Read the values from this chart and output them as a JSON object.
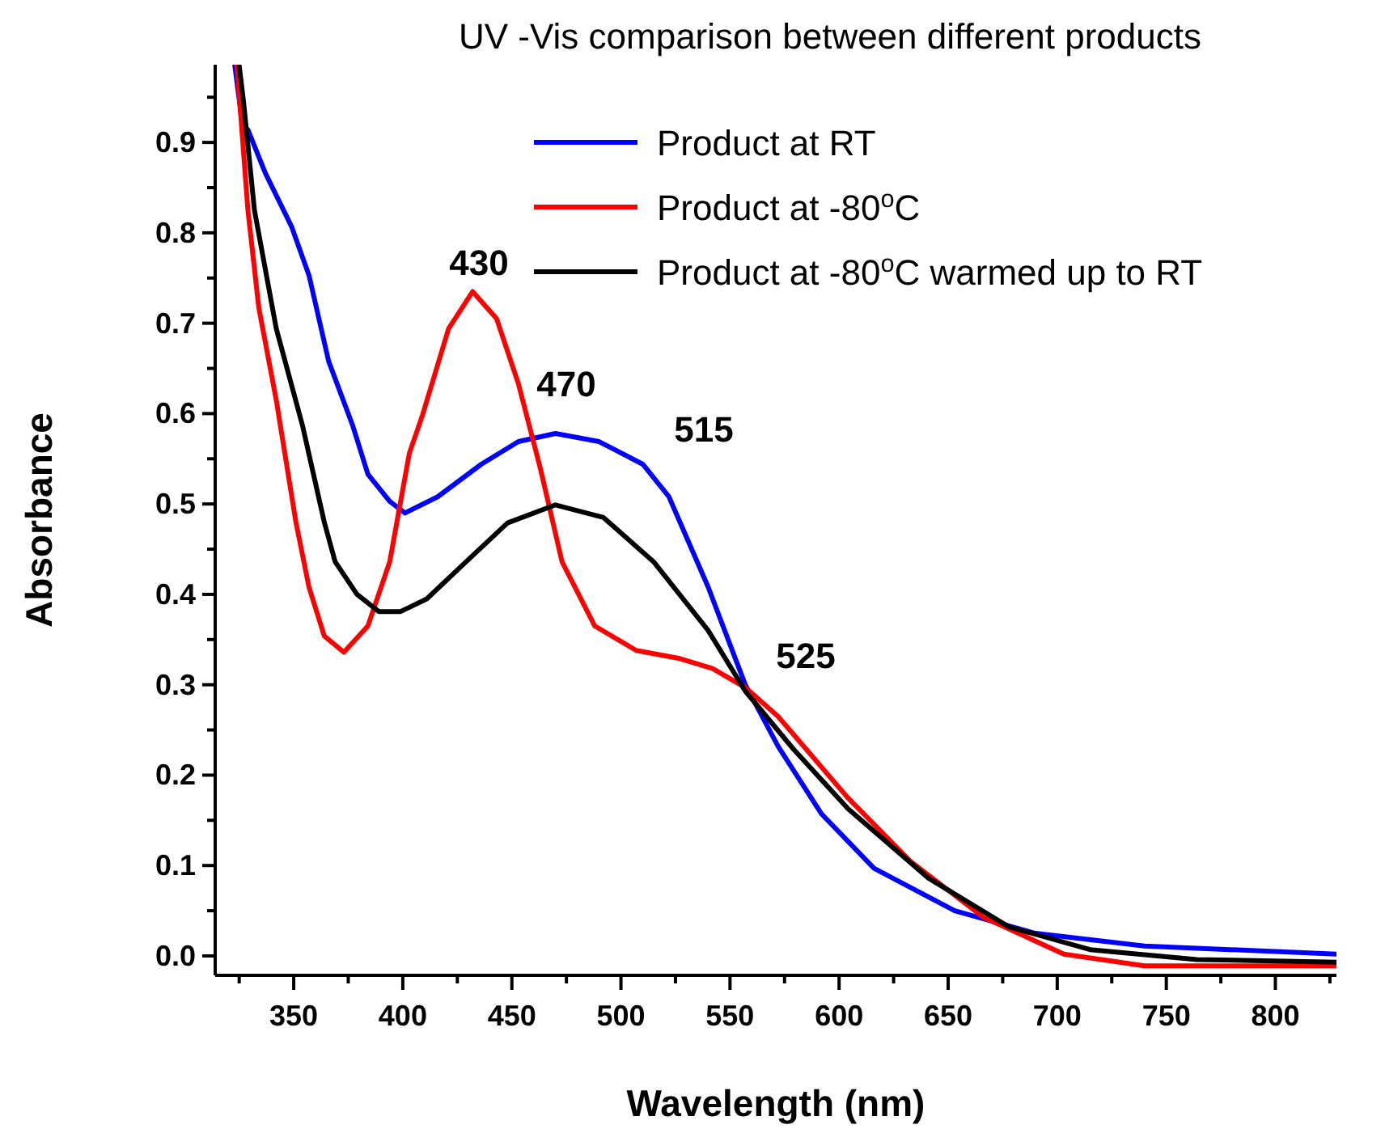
{
  "chart_data": {
    "type": "line",
    "title": "UV -Vis comparison between different products",
    "xlabel": "Wavelength (nm)",
    "ylabel": "Absorbance",
    "xlim": [
      314,
      828
    ],
    "ylim": [
      -0.0215,
      0.986
    ],
    "xticks": [
      {
        "value": 325,
        "label": null
      },
      350,
      {
        "value": 375,
        "label": null
      },
      400,
      {
        "value": 425,
        "label": null
      },
      450,
      {
        "value": 475,
        "label": null
      },
      500,
      {
        "value": 525,
        "label": null
      },
      550,
      {
        "value": 575,
        "label": null
      },
      600,
      {
        "value": 625,
        "label": null
      },
      650,
      {
        "value": 675,
        "label": null
      },
      700,
      {
        "value": 725,
        "label": null
      },
      750,
      {
        "value": 775,
        "label": null
      },
      800,
      {
        "value": 825,
        "label": null
      }
    ],
    "yticks": [
      {
        "value": 0,
        "label": "0.0"
      },
      {
        "value": 0.05,
        "label": null
      },
      0.1,
      {
        "value": 0.15,
        "label": null
      },
      0.2,
      {
        "value": 0.25,
        "label": null
      },
      0.3,
      {
        "value": 0.35,
        "label": null
      },
      0.4,
      {
        "value": 0.45,
        "label": null
      },
      0.5,
      {
        "value": 0.55,
        "label": null
      },
      0.6,
      {
        "value": 0.65,
        "label": null
      },
      0.7,
      {
        "value": 0.75,
        "label": null
      },
      0.8,
      {
        "value": 0.85,
        "label": null
      },
      0.9,
      {
        "value": 0.95,
        "label": null
      }
    ],
    "grid": false,
    "legend": "top right",
    "marker": "none",
    "line_style": "solid",
    "annotations": [
      "430",
      "470",
      "515",
      "525"
    ],
    "series": [
      {
        "name": "Product at RT",
        "color": "#0000ff",
        "x": [
          323,
          327,
          329,
          337,
          349,
          357,
          366,
          377,
          384,
          394,
          401,
          416,
          436,
          453,
          470,
          490,
          510,
          522,
          540,
          557,
          572,
          592,
          616,
          653,
          690,
          740,
          828
        ],
        "values": [
          0.985,
          0.91,
          0.914,
          0.866,
          0.807,
          0.753,
          0.658,
          0.587,
          0.533,
          0.503,
          0.49,
          0.508,
          0.544,
          0.569,
          0.578,
          0.569,
          0.544,
          0.508,
          0.408,
          0.3,
          0.232,
          0.157,
          0.097,
          0.05,
          0.025,
          0.011,
          0.002
        ]
      },
      {
        "name": "Product at -80$^{o}$C",
        "color": "#ff0000",
        "x": [
          324,
          329,
          334,
          342,
          351,
          357,
          364,
          373,
          384,
          394,
          403,
          409,
          421,
          432,
          443,
          453,
          463,
          473,
          488,
          507,
          527,
          542,
          557,
          572,
          604,
          633,
          666,
          703,
          740,
          828
        ],
        "values": [
          0.985,
          0.825,
          0.717,
          0.615,
          0.48,
          0.408,
          0.354,
          0.336,
          0.365,
          0.436,
          0.556,
          0.598,
          0.694,
          0.735,
          0.705,
          0.633,
          0.54,
          0.436,
          0.365,
          0.338,
          0.329,
          0.318,
          0.297,
          0.265,
          0.175,
          0.104,
          0.043,
          0.002,
          -0.011,
          -0.011
        ]
      },
      {
        "name": "Product at -80$^{o}$C warmed up to RT",
        "color": "#000000",
        "x": [
          325,
          327,
          332,
          342,
          354,
          364,
          369,
          379,
          389,
          399,
          411,
          429,
          448,
          470,
          492,
          515,
          540,
          557,
          579,
          604,
          641,
          678,
          715,
          764,
          828
        ],
        "values": [
          0.985,
          0.945,
          0.825,
          0.694,
          0.587,
          0.48,
          0.436,
          0.4,
          0.381,
          0.381,
          0.395,
          0.436,
          0.479,
          0.499,
          0.485,
          0.436,
          0.36,
          0.293,
          0.229,
          0.163,
          0.086,
          0.032,
          0.007,
          -0.004,
          -0.007
        ]
      }
    ]
  }
}
